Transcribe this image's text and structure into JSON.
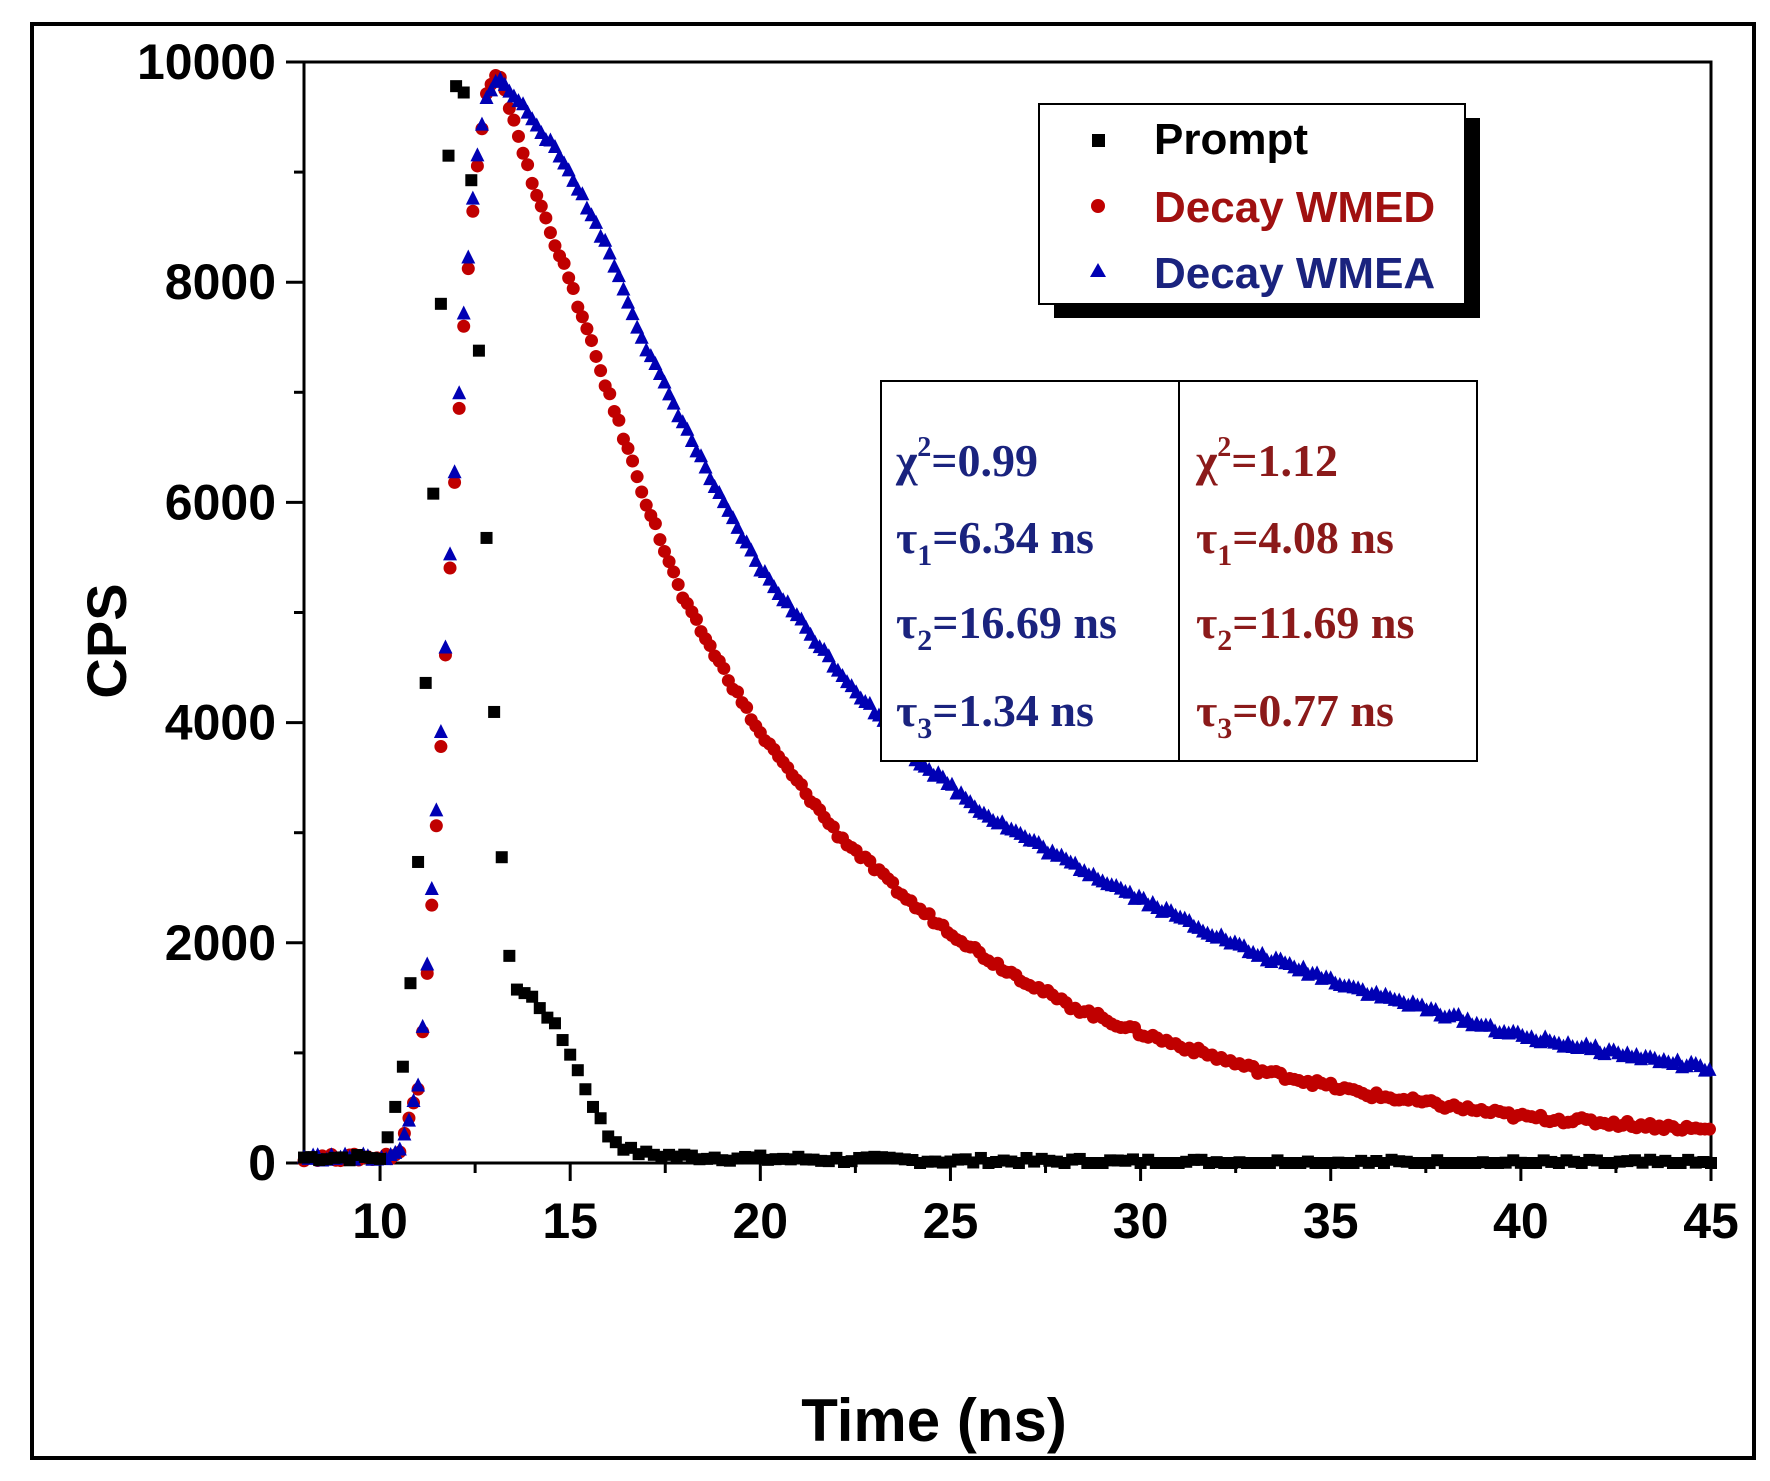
{
  "chart_data": {
    "type": "scatter",
    "title": "",
    "xlabel": "Time (ns)",
    "ylabel": "CPS",
    "xlim": [
      8,
      45
    ],
    "ylim": [
      0,
      10000
    ],
    "xticks": [
      10,
      15,
      20,
      25,
      30,
      35,
      40,
      45
    ],
    "yticks": [
      0,
      2000,
      4000,
      6000,
      8000,
      10000
    ],
    "legend_position": "top-right",
    "series": [
      {
        "name": "Prompt",
        "marker": "square",
        "color": "#000000",
        "x": [
          8,
          9,
          10,
          10.3,
          10.6,
          10.9,
          11.1,
          11.3,
          11.5,
          11.7,
          11.9,
          12.1,
          12.3,
          12.5,
          12.7,
          12.9,
          13.1,
          13.3,
          13.5,
          14,
          14.5,
          15,
          15.5,
          16,
          16.5,
          17,
          18,
          20,
          25,
          30,
          35,
          40,
          45
        ],
        "y": [
          50,
          50,
          50,
          300,
          900,
          2000,
          3500,
          5200,
          7000,
          8600,
          9700,
          9900,
          9600,
          8200,
          6500,
          4900,
          3300,
          2200,
          1600,
          1500,
          1300,
          1000,
          600,
          250,
          120,
          80,
          60,
          40,
          20,
          10,
          5,
          0,
          0
        ]
      },
      {
        "name": "Decay WMED",
        "marker": "circle",
        "color": "#c00000",
        "x": [
          8,
          9,
          10,
          10.5,
          11,
          11.3,
          11.6,
          11.9,
          12.2,
          12.5,
          12.8,
          13.1,
          13.5,
          14,
          15,
          16,
          17,
          18,
          19,
          20,
          22,
          24,
          26,
          28,
          30,
          33,
          36,
          40,
          45
        ],
        "y": [
          50,
          50,
          50,
          80,
          700,
          2000,
          3800,
          5800,
          7600,
          8900,
          9700,
          9900,
          9500,
          8900,
          8000,
          7000,
          6000,
          5100,
          4500,
          3900,
          3000,
          2350,
          1850,
          1450,
          1180,
          850,
          620,
          420,
          300
        ]
      },
      {
        "name": "Decay WMEA",
        "marker": "triangle",
        "color": "#0000b4",
        "x": [
          8,
          9,
          10,
          10.5,
          11,
          11.3,
          11.6,
          11.9,
          12.2,
          12.5,
          12.8,
          13.1,
          13.5,
          14,
          15,
          16,
          17,
          18,
          19,
          20,
          22,
          24,
          26,
          28,
          30,
          33,
          36,
          40,
          45
        ],
        "y": [
          50,
          50,
          50,
          80,
          700,
          2100,
          3900,
          5900,
          7700,
          9000,
          9700,
          9850,
          9700,
          9500,
          9000,
          8300,
          7400,
          6700,
          6000,
          5400,
          4500,
          3700,
          3150,
          2750,
          2400,
          1900,
          1550,
          1150,
          850
        ]
      }
    ],
    "fit_results": [
      {
        "color": "#1a237e",
        "chi": "χ",
        "chi_sup": "2",
        "chi_val": "=0.99",
        "tau1_val": "=6.34 ns",
        "tau2_val": "=16.69 ns",
        "tau3_val": "=1.34 ns"
      },
      {
        "color": "#8b1a1a",
        "chi": "χ",
        "chi_sup": "2",
        "chi_val": "=1.12",
        "tau1_val": "=4.08 ns",
        "tau2_val": "=11.69 ns",
        "tau3_val": "=0.77 ns"
      }
    ],
    "tau_symbol": "τ",
    "tau_subs": [
      "1",
      "2",
      "3"
    ]
  }
}
